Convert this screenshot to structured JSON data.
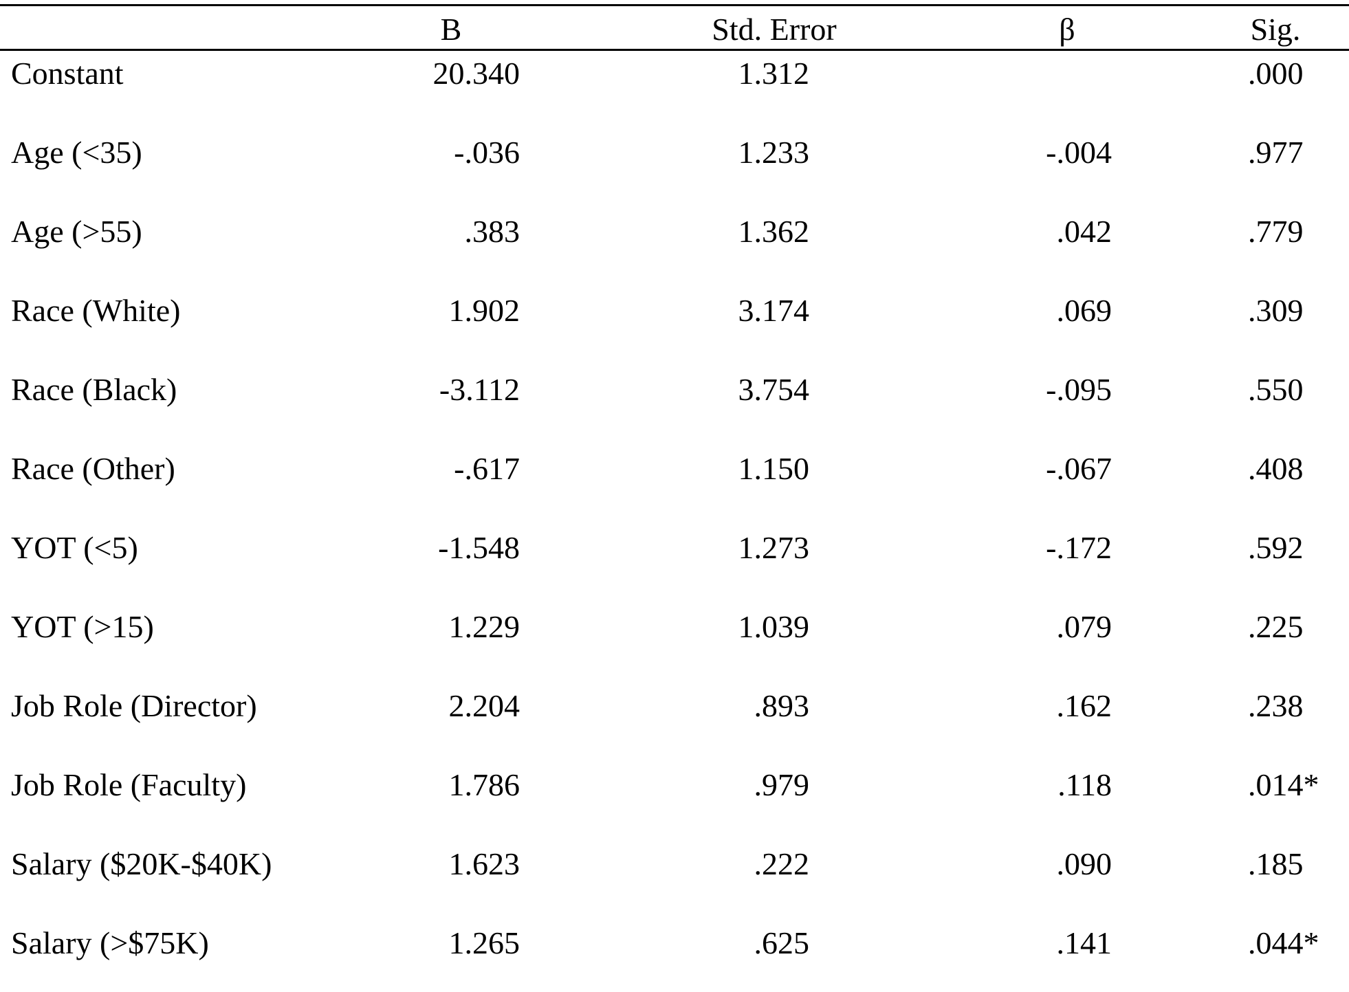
{
  "table": {
    "columns": [
      "",
      "B",
      "Std. Error",
      "β",
      "Sig."
    ],
    "rows": [
      {
        "label": "Constant",
        "b": "20.340",
        "se": "1.312",
        "beta": "",
        "sig": ".000"
      },
      {
        "label": "Age (<35)",
        "b": "-.036",
        "se": "1.233",
        "beta": "-.004",
        "sig": ".977"
      },
      {
        "label": "Age (>55)",
        "b": ".383",
        "se": "1.362",
        "beta": ".042",
        "sig": ".779"
      },
      {
        "label": "Race (White)",
        "b": "1.902",
        "se": "3.174",
        "beta": ".069",
        "sig": ".309"
      },
      {
        "label": "Race (Black)",
        "b": "-3.112",
        "se": "3.754",
        "beta": "-.095",
        "sig": ".550"
      },
      {
        "label": "Race (Other)",
        "b": "-.617",
        "se": "1.150",
        "beta": "-.067",
        "sig": ".408"
      },
      {
        "label": "YOT (<5)",
        "b": "-1.548",
        "se": "1.273",
        "beta": "-.172",
        "sig": ".592"
      },
      {
        "label": "YOT (>15)",
        "b": "1.229",
        "se": "1.039",
        "beta": ".079",
        "sig": ".225"
      },
      {
        "label": "Job Role (Director)",
        "b": "2.204",
        "se": ".893",
        "beta": ".162",
        "sig": ".238"
      },
      {
        "label": "Job Role (Faculty)",
        "b": "1.786",
        "se": ".979",
        "beta": ".118",
        "sig": ".014*"
      },
      {
        "label": "Salary ($20K-$40K)",
        "b": "1.623",
        "se": ".222",
        "beta": ".090",
        "sig": ".185"
      },
      {
        "label": "Salary (>$75K)",
        "b": "1.265",
        "se": ".625",
        "beta": ".141",
        "sig": ".044*"
      }
    ]
  }
}
